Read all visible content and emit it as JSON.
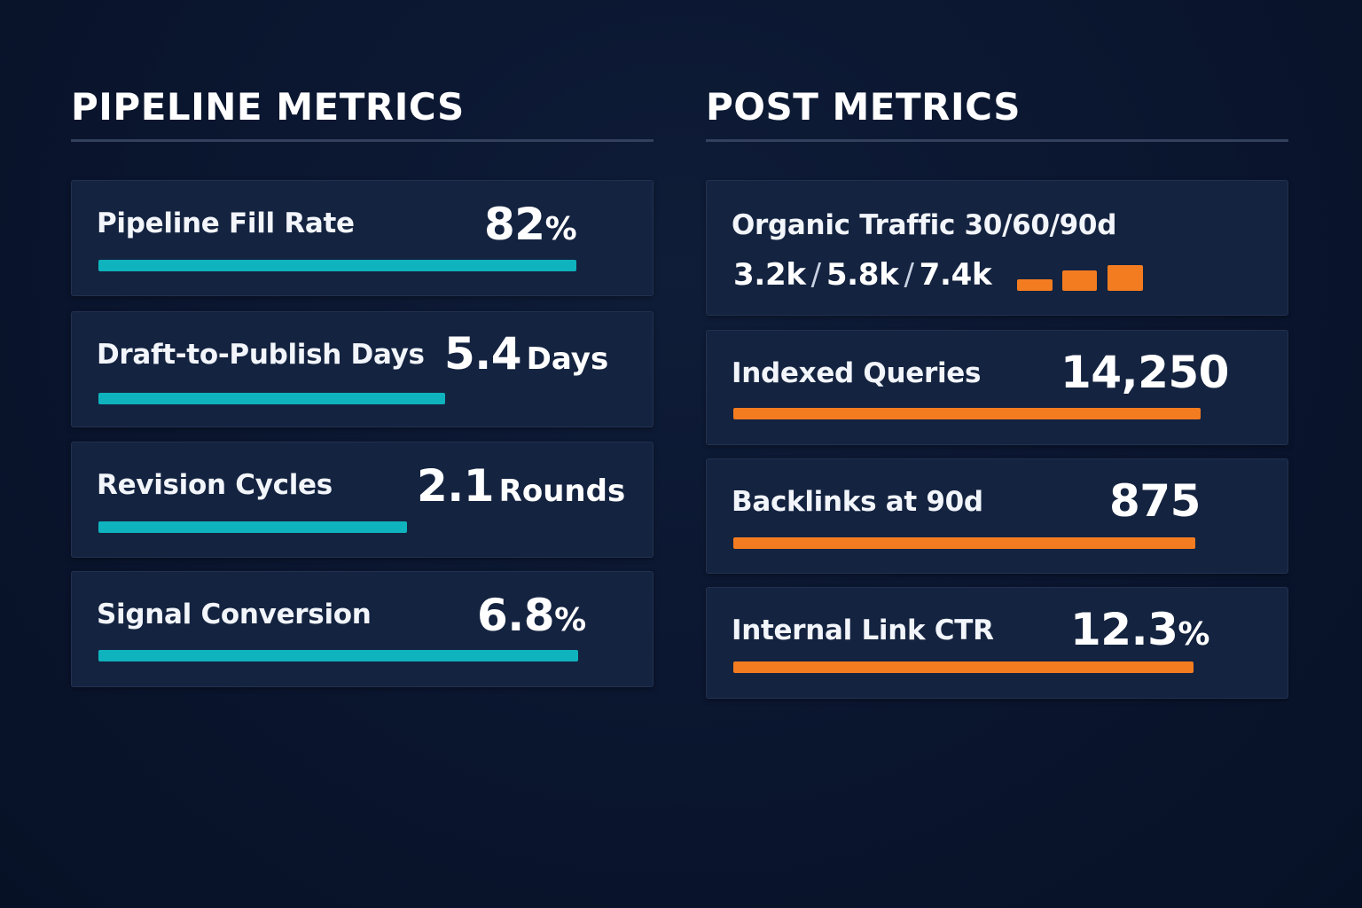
{
  "pipeline": {
    "title": "PIPELINE METRICS",
    "cards": [
      {
        "label": "Pipeline Fill Rate",
        "value": "82",
        "unit": "%",
        "fill": 0.82
      },
      {
        "label": "Draft-to-Publish Days",
        "value": "5.4",
        "unit": "Days",
        "fill": 0.54
      },
      {
        "label": "Revision Cycles",
        "value": "2.1",
        "unit": "Rounds",
        "fill": 0.48
      },
      {
        "label": "Signal Conversion",
        "value": "6.8",
        "unit": "%",
        "fill": 0.83
      }
    ]
  },
  "post": {
    "title": "POST METRICS",
    "traffic": {
      "label": "Organic Traffic 30/60/90d",
      "v30": "3.2k",
      "v60": "5.8k",
      "v90": "7.4k",
      "separator": "/",
      "mini_levels": [
        3.2,
        5.8,
        7.4
      ]
    },
    "cards": [
      {
        "label": "Indexed Queries",
        "value": "14,250",
        "unit": "",
        "fill": 0.8
      },
      {
        "label": "Backlinks at 90d",
        "value": "875",
        "unit": "",
        "fill": 0.79
      },
      {
        "label": "Internal Link CTR",
        "value": "12.3",
        "unit": "%",
        "fill": 0.78
      }
    ]
  },
  "colors": {
    "background": "#0b1630",
    "card": "#142340",
    "teal": "#0fb3be",
    "orange": "#f47c20"
  }
}
